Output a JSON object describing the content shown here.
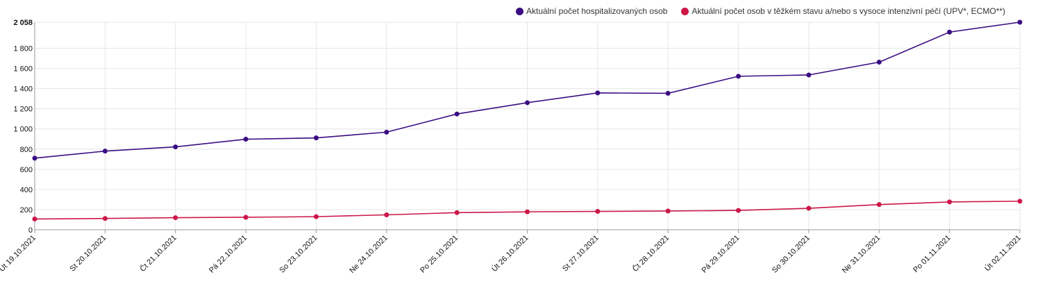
{
  "chart_data": {
    "type": "line",
    "categories": [
      "Út 19.10.2021",
      "St 20.10.2021",
      "Čt 21.10.2021",
      "Pá 22.10.2021",
      "So 23.10.2021",
      "Ne 24.10.2021",
      "Po 25.10.2021",
      "Út 26.10.2021",
      "St 27.10.2021",
      "Čt 28.10.2021",
      "Pá 29.10.2021",
      "So 30.10.2021",
      "Ne 31.10.2021",
      "Po 01.11.2021",
      "Út 02.11.2021"
    ],
    "series": [
      {
        "name": "Aktuální počet hospitalizovaných osob",
        "color": "#3b0d83",
        "values": [
          710,
          780,
          822,
          898,
          911,
          968,
          1148,
          1260,
          1357,
          1353,
          1522,
          1535,
          1662,
          1960,
          2058
        ]
      },
      {
        "name": "Aktuální počet osob v těžkém stavu a/nebo s vysoce intenzivní péčí (UPV*, ECMO**)",
        "color": "#cc1648",
        "values": [
          107,
          112,
          120,
          124,
          130,
          148,
          170,
          178,
          182,
          186,
          192,
          213,
          250,
          276,
          283
        ]
      }
    ],
    "yticks": [
      0,
      200,
      400,
      600,
      800,
      1000,
      1200,
      1400,
      1600,
      1800,
      2058
    ],
    "ytick_labels": [
      "0",
      "200",
      "400",
      "600",
      "800",
      "1 000",
      "1 200",
      "1 400",
      "1 600",
      "1 800",
      "2 058"
    ],
    "ylim": [
      0,
      2058
    ],
    "grid": true,
    "legend_position": "top-right"
  }
}
